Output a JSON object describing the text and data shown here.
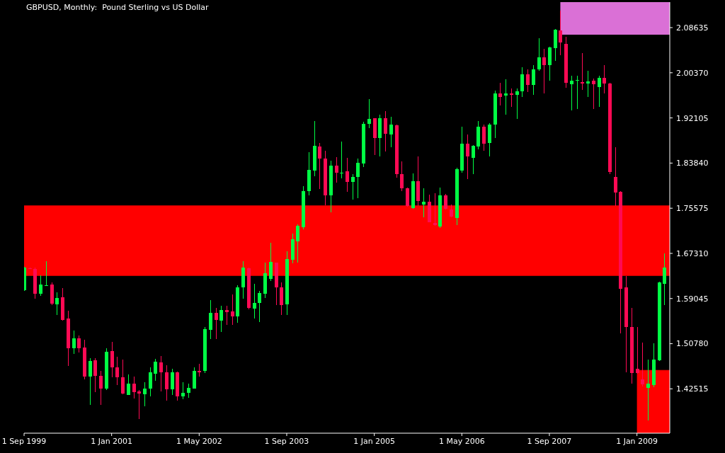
{
  "chart_data": {
    "type": "candlestick",
    "title": "GBPUSD, Monthly:  Pound Sterling vs US Dollar",
    "x": [
      "1999-09",
      "1999-10",
      "1999-11",
      "1999-12",
      "2000-01",
      "2000-02",
      "2000-03",
      "2000-04",
      "2000-05",
      "2000-06",
      "2000-07",
      "2000-08",
      "2000-09",
      "2000-10",
      "2000-11",
      "2000-12",
      "2001-01",
      "2001-02",
      "2001-03",
      "2001-04",
      "2001-05",
      "2001-06",
      "2001-07",
      "2001-08",
      "2001-09",
      "2001-10",
      "2001-11",
      "2001-12",
      "2002-01",
      "2002-02",
      "2002-03",
      "2002-04",
      "2002-05",
      "2002-06",
      "2002-07",
      "2002-08",
      "2002-09",
      "2002-10",
      "2002-11",
      "2002-12",
      "2003-01",
      "2003-02",
      "2003-03",
      "2003-04",
      "2003-05",
      "2003-06",
      "2003-07",
      "2003-08",
      "2003-09",
      "2003-10",
      "2003-11",
      "2003-12",
      "2004-01",
      "2004-02",
      "2004-03",
      "2004-04",
      "2004-05",
      "2004-06",
      "2004-07",
      "2004-08",
      "2004-09",
      "2004-10",
      "2004-11",
      "2004-12",
      "2005-01",
      "2005-02",
      "2005-03",
      "2005-04",
      "2005-05",
      "2005-06",
      "2005-07",
      "2005-08",
      "2005-09",
      "2005-10",
      "2005-11",
      "2005-12",
      "2006-01",
      "2006-02",
      "2006-03",
      "2006-04",
      "2006-05",
      "2006-06",
      "2006-07",
      "2006-08",
      "2006-09",
      "2006-10",
      "2006-11",
      "2006-12",
      "2007-01",
      "2007-02",
      "2007-03",
      "2007-04",
      "2007-05",
      "2007-06",
      "2007-07",
      "2007-08",
      "2007-09",
      "2007-10",
      "2007-11",
      "2007-12",
      "2008-01",
      "2008-02",
      "2008-03",
      "2008-04",
      "2008-05",
      "2008-06",
      "2008-07",
      "2008-08",
      "2008-09",
      "2008-10",
      "2008-11",
      "2008-12",
      "2009-01",
      "2009-02",
      "2009-03",
      "2009-04",
      "2009-05",
      "2009-06"
    ],
    "ohlc": [
      [
        1.6056,
        1.649,
        1.605,
        1.6478
      ],
      [
        1.6465,
        1.6475,
        1.6445,
        1.6452
      ],
      [
        1.6452,
        1.647,
        1.5908,
        1.5987
      ],
      [
        1.5987,
        1.6331,
        1.5956,
        1.6161
      ],
      [
        1.6148,
        1.6584,
        1.6135,
        1.6152
      ],
      [
        1.6161,
        1.6199,
        1.5782,
        1.5808
      ],
      [
        1.5792,
        1.6014,
        1.5608,
        1.5914
      ],
      [
        1.5924,
        1.6093,
        1.5502,
        1.5518
      ],
      [
        1.5534,
        1.5681,
        1.4668,
        1.4999
      ],
      [
        1.4999,
        1.5317,
        1.4895,
        1.5175
      ],
      [
        1.5175,
        1.5228,
        1.4911,
        1.4999
      ],
      [
        1.5011,
        1.5154,
        1.442,
        1.4473
      ],
      [
        1.4473,
        1.4816,
        1.3956,
        1.4763
      ],
      [
        1.4774,
        1.4816,
        1.4193,
        1.4489
      ],
      [
        1.4489,
        1.4579,
        1.3956,
        1.4262
      ],
      [
        1.4251,
        1.4995,
        1.4236,
        1.4932
      ],
      [
        1.4948,
        1.5112,
        1.4462,
        1.4642
      ],
      [
        1.4647,
        1.4842,
        1.4315,
        1.4462
      ],
      [
        1.4468,
        1.4784,
        1.4157,
        1.4162
      ],
      [
        1.4146,
        1.451,
        1.4136,
        1.4341
      ],
      [
        1.4341,
        1.4473,
        1.4077,
        1.4193
      ],
      [
        1.4204,
        1.4236,
        1.37,
        1.4162
      ],
      [
        1.4157,
        1.4367,
        1.3929,
        1.4262
      ],
      [
        1.4262,
        1.4642,
        1.4119,
        1.4552
      ],
      [
        1.4526,
        1.4805,
        1.4405,
        1.4753
      ],
      [
        1.4737,
        1.4858,
        1.4204,
        1.4552
      ],
      [
        1.4552,
        1.4684,
        1.4041,
        1.4246
      ],
      [
        1.4246,
        1.4621,
        1.4141,
        1.4552
      ],
      [
        1.4552,
        1.4568,
        1.4041,
        1.4119
      ],
      [
        1.4114,
        1.4378,
        1.4061,
        1.4183
      ],
      [
        1.4173,
        1.4341,
        1.4088,
        1.4273
      ],
      [
        1.4257,
        1.4647,
        1.4257,
        1.4584
      ],
      [
        1.4584,
        1.471,
        1.4473,
        1.4552
      ],
      [
        1.4579,
        1.5381,
        1.4542,
        1.5344
      ],
      [
        1.5328,
        1.5871,
        1.5159,
        1.5645
      ],
      [
        1.5645,
        1.5734,
        1.5159,
        1.5513
      ],
      [
        1.5497,
        1.5766,
        1.5291,
        1.5692
      ],
      [
        1.5692,
        1.5776,
        1.5423,
        1.565
      ],
      [
        1.5666,
        1.5977,
        1.5423,
        1.5576
      ],
      [
        1.5576,
        1.6146,
        1.546,
        1.6109
      ],
      [
        1.6104,
        1.6584,
        1.5908,
        1.6478
      ],
      [
        1.6463,
        1.6478,
        1.5702,
        1.5739
      ],
      [
        1.5724,
        1.6172,
        1.5544,
        1.5829
      ],
      [
        1.5819,
        1.604,
        1.547,
        1.6003
      ],
      [
        1.5998,
        1.6557,
        1.5913,
        1.6372
      ],
      [
        1.6267,
        1.6927,
        1.623,
        1.6573
      ],
      [
        1.6557,
        1.6565,
        1.5782,
        1.6104
      ],
      [
        1.6109,
        1.6199,
        1.5608,
        1.5787
      ],
      [
        1.5792,
        1.6769,
        1.5608,
        1.6626
      ],
      [
        1.661,
        1.7096,
        1.6547,
        1.699
      ],
      [
        1.6953,
        1.7259,
        1.6568,
        1.7233
      ],
      [
        1.7206,
        1.7956,
        1.7175,
        1.7866
      ],
      [
        1.7866,
        1.8589,
        1.7798,
        1.8257
      ],
      [
        1.8246,
        1.9159,
        1.8141,
        1.8695
      ],
      [
        1.8684,
        1.8758,
        1.7914,
        1.8473
      ],
      [
        1.8473,
        1.8615,
        1.7613,
        1.7798
      ],
      [
        1.7798,
        1.8431,
        1.7481,
        1.8341
      ],
      [
        1.8341,
        1.8499,
        1.8024,
        1.8204
      ],
      [
        1.8201,
        1.8784,
        1.8098,
        1.8206
      ],
      [
        1.8236,
        1.8484,
        1.7861,
        1.8035
      ],
      [
        1.8035,
        1.8178,
        1.7718,
        1.8125
      ],
      [
        1.8125,
        1.8468,
        1.7745,
        1.8394
      ],
      [
        1.8378,
        1.9143,
        1.8309,
        1.9101
      ],
      [
        1.9101,
        1.9555,
        1.9027,
        1.9196
      ],
      [
        1.9206,
        1.921,
        1.8536,
        1.8842
      ],
      [
        1.8842,
        1.9275,
        1.851,
        1.9206
      ],
      [
        1.9206,
        1.9338,
        1.86,
        1.8916
      ],
      [
        1.8906,
        1.9233,
        1.8668,
        1.909
      ],
      [
        1.908,
        1.909,
        1.8114,
        1.8183
      ],
      [
        1.8183,
        1.842,
        1.7877,
        1.7919
      ],
      [
        1.7919,
        1.793,
        1.7586,
        1.7597
      ],
      [
        1.756,
        1.8193,
        1.755,
        1.8046
      ],
      [
        1.8046,
        1.851,
        1.7603,
        1.7692
      ],
      [
        1.7623,
        1.7919,
        1.7391,
        1.7681
      ],
      [
        1.7681,
        1.7808,
        1.7296,
        1.7296
      ],
      [
        1.7291,
        1.7834,
        1.724,
        1.7249
      ],
      [
        1.7217,
        1.794,
        1.7191,
        1.7798
      ],
      [
        1.7787,
        1.7824,
        1.7539,
        1.755
      ],
      [
        1.7534,
        1.7629,
        1.7391,
        1.7402
      ],
      [
        1.7375,
        1.8299,
        1.7254,
        1.8272
      ],
      [
        1.8246,
        1.9048,
        1.8209,
        1.8737
      ],
      [
        1.8737,
        1.8906,
        1.8088,
        1.851
      ],
      [
        1.8478,
        1.8711,
        1.8178,
        1.8695
      ],
      [
        1.8684,
        1.9154,
        1.8631,
        1.9053
      ],
      [
        1.9053,
        1.909,
        1.8605,
        1.8737
      ],
      [
        1.8747,
        1.9117,
        1.851,
        1.909
      ],
      [
        1.909,
        1.9713,
        1.8837,
        1.966
      ],
      [
        1.966,
        1.9856,
        1.9433,
        1.9592
      ],
      [
        1.9618,
        1.9924,
        1.9265,
        1.9655
      ],
      [
        1.9655,
        1.975,
        1.9407,
        1.9629
      ],
      [
        1.9629,
        1.9745,
        1.9196,
        1.9692
      ],
      [
        1.9697,
        2.0135,
        1.9592,
        2.0014
      ],
      [
        2.0014,
        2.0093,
        1.9681,
        1.9819
      ],
      [
        1.9813,
        2.0172,
        1.9629,
        2.0104
      ],
      [
        2.0093,
        2.0674,
        2.0067,
        2.0315
      ],
      [
        2.0315,
        2.0478,
        1.966,
        2.0172
      ],
      [
        2.0172,
        2.0515,
        1.9892,
        2.0499
      ],
      [
        2.0489,
        2.0842,
        2.0251,
        2.0821
      ],
      [
        2.0816,
        2.1175,
        2.0357,
        2.0594
      ],
      [
        2.0568,
        2.07,
        1.9766,
        1.9856
      ],
      [
        1.9829,
        1.9977,
        1.9344,
        1.9892
      ],
      [
        1.9892,
        1.9987,
        1.937,
        1.9908
      ],
      [
        1.9866,
        2.0399,
        1.9724,
        1.984
      ],
      [
        1.984,
        2.0067,
        1.9597,
        1.9882
      ],
      [
        1.9892,
        1.9934,
        1.937,
        1.9829
      ],
      [
        1.9776,
        1.9977,
        1.9407,
        1.995
      ],
      [
        1.9945,
        2.0172,
        1.966,
        1.984
      ],
      [
        1.9845,
        1.9856,
        1.8178,
        1.822
      ],
      [
        1.8125,
        1.8679,
        1.7602,
        1.784
      ],
      [
        1.7861,
        1.7877,
        1.5264,
        1.6082
      ],
      [
        1.6109,
        1.632,
        1.4552,
        1.5381
      ],
      [
        1.5386,
        1.5739,
        1.4352,
        1.4542
      ],
      [
        1.4621,
        1.5386,
        1.453,
        1.4542
      ],
      [
        1.443,
        1.51,
        1.429,
        1.433
      ],
      [
        1.4272,
        1.4789,
        1.3671,
        1.4341
      ],
      [
        1.4315,
        1.508,
        1.4288,
        1.4789
      ],
      [
        1.4779,
        1.6214,
        1.4763,
        1.6204
      ],
      [
        1.6178,
        1.6731,
        1.5781,
        1.6468
      ]
    ],
    "colors": [
      "#00ff44",
      "#ff0a54",
      "#ff0a54",
      "#00ff44",
      "#00ff44",
      "#ff0a54",
      "#00ff44",
      "#ff0a54",
      "#ff0a54",
      "#00ff44",
      "#ff0a54",
      "#ff0a54",
      "#00ff44",
      "#ff0a54",
      "#ff0a54",
      "#00ff44",
      "#ff0a54",
      "#ff0a54",
      "#ff0a54",
      "#00ff44",
      "#ff0a54",
      "#ff0a54",
      "#00ff44",
      "#00ff44",
      "#00ff44",
      "#ff0a54",
      "#ff0a54",
      "#00ff44",
      "#ff0a54",
      "#00ff44",
      "#00ff44",
      "#00ff44",
      "#ff0a54",
      "#00ff44",
      "#00ff44",
      "#ff0a54",
      "#00ff44",
      "#ff0a54",
      "#ff0a54",
      "#00ff44",
      "#00ff44",
      "#ff0a54",
      "#00ff44",
      "#00ff44",
      "#00ff44",
      "#00ff44",
      "#ff0a54",
      "#ff0a54",
      "#00ff44",
      "#00ff44",
      "#00ff44",
      "#00ff44",
      "#00ff44",
      "#00ff44",
      "#ff0a54",
      "#ff0a54",
      "#00ff44",
      "#ff0a54",
      "#00ff44",
      "#ff0a54",
      "#00ff44",
      "#00ff44",
      "#00ff44",
      "#00ff44",
      "#ff0a54",
      "#00ff44",
      "#ff0a54",
      "#00ff44",
      "#ff0a54",
      "#ff0a54",
      "#ff0a54",
      "#00ff44",
      "#ff0a54",
      "#00ff44",
      "#ff0a54",
      "#ff0a54",
      "#00ff44",
      "#ff0a54",
      "#ff0a54",
      "#00ff44",
      "#00ff44",
      "#ff0a54",
      "#00ff44",
      "#00ff44",
      "#ff0a54",
      "#00ff44",
      "#00ff44",
      "#ff0a54",
      "#00ff44",
      "#ff0a54",
      "#00ff44",
      "#00ff44",
      "#ff0a54",
      "#00ff44",
      "#00ff44",
      "#ff0a54",
      "#00ff44",
      "#00ff44",
      "#ff0a54",
      "#ff0a54",
      "#00ff44",
      "#00ff44",
      "#ff0a54",
      "#00ff44",
      "#ff0a54",
      "#00ff44",
      "#ff0a54",
      "#ff0a54",
      "#ff0a54",
      "#ff0a54",
      "#ff0a54",
      "#ff0a54",
      "#ff0a54",
      "#ff0a54",
      "#00ff44",
      "#00ff44",
      "#00ff44",
      "#00ff44"
    ],
    "series": [
      {
        "type": "line",
        "x": [
          "2007-11",
          "2009-07"
        ],
        "values": [
          2.074,
          2.074
        ],
        "lower": [
          2.074,
          2.074
        ],
        "upper": [
          2.133,
          2.133
        ],
        "color": "#da70d6"
      },
      {
        "type": "line",
        "x": [
          "2009-01",
          "2009-07"
        ],
        "values": [
          1.459,
          1.459
        ],
        "lower": [
          1.344,
          1.344
        ],
        "upper": [
          1.459,
          1.459
        ],
        "color": "#ff0000"
      }
    ],
    "xlim": [
      "1999-09",
      "2009-07"
    ],
    "xticks": [
      {
        "value": "1999-09",
        "label": "1 Sep 1999"
      },
      {
        "value": "2001-01",
        "label": "1 Jan 2001"
      },
      {
        "value": "2002-05",
        "label": "1 May 2002"
      },
      {
        "value": "2003-09",
        "label": "1 Sep 2003"
      },
      {
        "value": "2005-01",
        "label": "1 Jan 2005"
      },
      {
        "value": "2006-05",
        "label": "1 May 2006"
      },
      {
        "value": "2007-09",
        "label": "1 Sep 2007"
      },
      {
        "value": "2009-01",
        "label": "1 Jan 2009"
      }
    ],
    "ylim": [
      1.344,
      2.133
    ],
    "yticks": [
      1.42515,
      {
        "value": 1.5078,
        "label": "1.50780"
      },
      1.59045,
      {
        "value": 1.6731,
        "label": "1.67310"
      },
      1.75575,
      {
        "value": 1.8384,
        "label": "1.83840"
      },
      1.92105,
      {
        "value": 2.0037,
        "label": "2.00370"
      },
      2.08635
    ],
    "bands": [
      {
        "axis": "y",
        "from": 1.632,
        "to": 1.761,
        "color": "#ff0000"
      }
    ]
  }
}
